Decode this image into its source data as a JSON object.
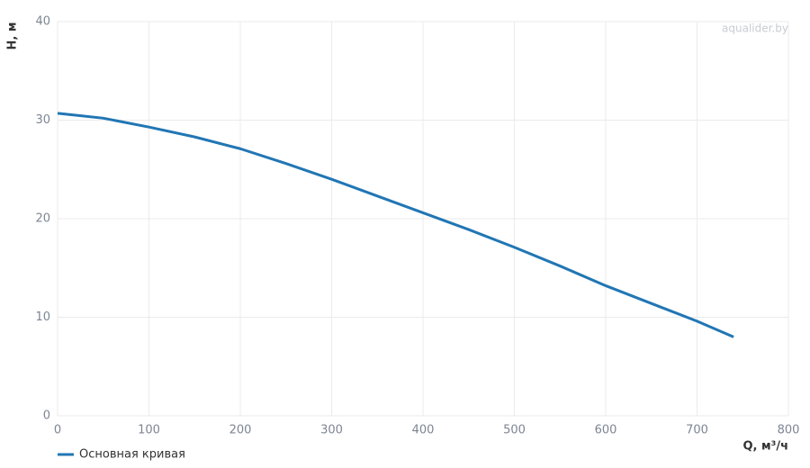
{
  "chart_data": {
    "type": "line",
    "x_label": "Q, м³/ч",
    "y_label": "H, м",
    "watermark": "aqualider.by",
    "x": [
      0,
      50,
      100,
      150,
      200,
      250,
      300,
      350,
      400,
      450,
      500,
      550,
      600,
      650,
      700,
      740
    ],
    "series": [
      {
        "name": "Основная кривая",
        "color": "#2176b4",
        "values": [
          30.7,
          30.2,
          29.3,
          28.3,
          27.1,
          25.6,
          24.0,
          22.3,
          20.6,
          18.9,
          17.1,
          15.2,
          13.2,
          11.4,
          9.6,
          8.0
        ]
      }
    ],
    "xlim": [
      0,
      800
    ],
    "xticks": [
      0,
      100,
      200,
      300,
      400,
      500,
      600,
      700,
      800
    ],
    "ylim": [
      0,
      40
    ],
    "yticks": [
      0,
      10,
      20,
      30,
      40
    ],
    "grid": true,
    "legend": "bottom-left"
  }
}
